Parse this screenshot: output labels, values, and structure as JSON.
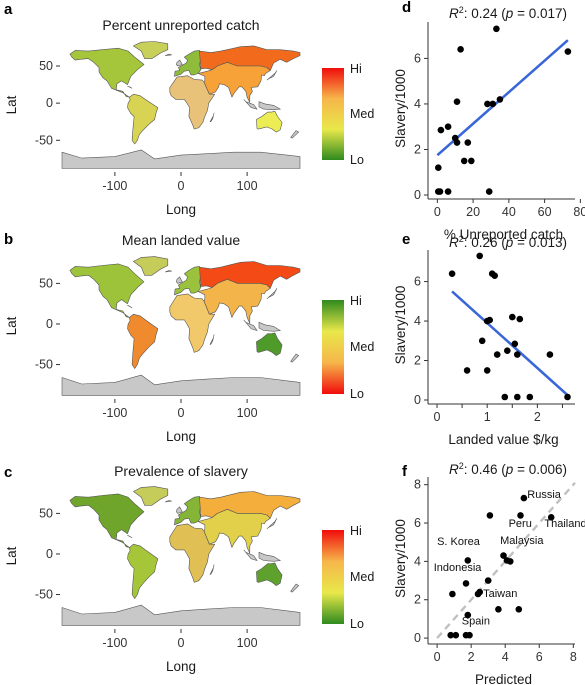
{
  "chart_data": [
    {
      "type": "map",
      "panel": "a",
      "title": "Percent unreported catch",
      "xlabel": "Long",
      "ylabel": "Lat",
      "xticks": [
        "-100",
        "0",
        "100"
      ],
      "yticks": [
        "50",
        "0",
        "-50"
      ],
      "xlim": [
        -180,
        180
      ],
      "ylim": [
        -90,
        85
      ],
      "legend_labels": [
        "Hi",
        "Med",
        "Lo"
      ],
      "legend_colors": [
        "#f00c0c",
        "#f6b64a",
        "#e8e84a",
        "#2f8a1e"
      ],
      "regions": [
        {
          "name": "North America",
          "color": "#a5c53a"
        },
        {
          "name": "Greenland",
          "color": "#c8d05a"
        },
        {
          "name": "South America",
          "color": "#d8d352"
        },
        {
          "name": "Africa",
          "color": "#e9c27a"
        },
        {
          "name": "Europe",
          "color": "#8fbc3b"
        },
        {
          "name": "Russia",
          "color": "#f26b1d"
        },
        {
          "name": "Asia",
          "color": "#f6a238"
        },
        {
          "name": "Australia",
          "color": "#ecec54"
        },
        {
          "name": "Antarctica",
          "color": "#c8c8c8"
        }
      ]
    },
    {
      "type": "map",
      "panel": "b",
      "title": "Mean landed value",
      "xlabel": "Long",
      "ylabel": "Lat",
      "xticks": [
        "-100",
        "0",
        "100"
      ],
      "yticks": [
        "50",
        "0",
        "-50"
      ],
      "xlim": [
        -180,
        180
      ],
      "ylim": [
        -90,
        85
      ],
      "legend_labels": [
        "Hi",
        "Med",
        "Lo"
      ],
      "legend_colors": [
        "#2f8a1e",
        "#e8e84a",
        "#f6b64a",
        "#f00c0c"
      ],
      "regions": [
        {
          "name": "North America",
          "color": "#9cc33a"
        },
        {
          "name": "Greenland",
          "color": "#c6cc5a"
        },
        {
          "name": "South America",
          "color": "#f08a2e"
        },
        {
          "name": "Africa",
          "color": "#f1c86a"
        },
        {
          "name": "Europe",
          "color": "#9ac23c"
        },
        {
          "name": "Russia",
          "color": "#f44a15"
        },
        {
          "name": "Asia",
          "color": "#f3b44a"
        },
        {
          "name": "Australia",
          "color": "#4f9b2a"
        },
        {
          "name": "Antarctica",
          "color": "#c8c8c8"
        }
      ]
    },
    {
      "type": "map",
      "panel": "c",
      "title": "Prevalence of slavery",
      "xlabel": "Long",
      "ylabel": "Lat",
      "xticks": [
        "-100",
        "0",
        "100"
      ],
      "yticks": [
        "50",
        "0",
        "-50"
      ],
      "xlim": [
        -180,
        180
      ],
      "ylim": [
        -90,
        85
      ],
      "legend_labels": [
        "Hi",
        "Med",
        "Lo"
      ],
      "legend_colors": [
        "#f00c0c",
        "#f6b64a",
        "#e8e84a",
        "#2f8a1e"
      ],
      "regions": [
        {
          "name": "North America",
          "color": "#6fa52a"
        },
        {
          "name": "Greenland",
          "color": "#c6cc5a"
        },
        {
          "name": "South America",
          "color": "#a6c63a"
        },
        {
          "name": "Africa",
          "color": "#e0c055"
        },
        {
          "name": "Europe",
          "color": "#84b536"
        },
        {
          "name": "Russia",
          "color": "#f3ae3c"
        },
        {
          "name": "Asia",
          "color": "#e2d04a"
        },
        {
          "name": "Australia",
          "color": "#5ea22d"
        },
        {
          "name": "Antarctica",
          "color": "#c8c8c8"
        }
      ]
    },
    {
      "type": "scatter",
      "panel": "d",
      "stat_text": "R²: 0.24 (p = 0.017)",
      "xlabel": "% Unreported catch",
      "ylabel": "Slavery/1000",
      "xlim": [
        -3,
        77
      ],
      "ylim": [
        0,
        7.6
      ],
      "xticks": [
        0,
        20,
        40,
        60,
        80
      ],
      "yticks": [
        0,
        2,
        4,
        6
      ],
      "line_color": "#3a67d8",
      "fit_line": {
        "x": [
          0,
          73
        ],
        "y": [
          1.75,
          6.8
        ]
      },
      "points": [
        {
          "x": 0.5,
          "y": 0.15
        },
        {
          "x": 1.5,
          "y": 0.15
        },
        {
          "x": 0.5,
          "y": 1.2
        },
        {
          "x": 2,
          "y": 2.85
        },
        {
          "x": 6,
          "y": 3.0
        },
        {
          "x": 6,
          "y": 0.15
        },
        {
          "x": 10,
          "y": 2.5
        },
        {
          "x": 11,
          "y": 2.3
        },
        {
          "x": 11,
          "y": 4.1
        },
        {
          "x": 13,
          "y": 6.4
        },
        {
          "x": 15,
          "y": 1.5
        },
        {
          "x": 17,
          "y": 2.3
        },
        {
          "x": 19,
          "y": 1.5
        },
        {
          "x": 28,
          "y": 4.0
        },
        {
          "x": 29,
          "y": 0.15
        },
        {
          "x": 31,
          "y": 4.0
        },
        {
          "x": 33,
          "y": 7.3
        },
        {
          "x": 35,
          "y": 4.2
        },
        {
          "x": 73,
          "y": 6.3
        }
      ]
    },
    {
      "type": "scatter",
      "panel": "e",
      "stat_text": "R²: 0.26 (p = 0.013)",
      "xlabel": "Landed value $/kg",
      "ylabel": "Slavery/1000",
      "xlim": [
        -0.1,
        2.75
      ],
      "ylim": [
        0,
        7.6
      ],
      "xticks": [
        0,
        0.5,
        1,
        1.5,
        2,
        2.5
      ],
      "xtick_labels": [
        "0",
        "",
        "1",
        "",
        "2",
        ""
      ],
      "yticks": [
        0,
        2,
        4,
        6
      ],
      "line_color": "#3a67d8",
      "fit_line": {
        "x": [
          0.3,
          2.6
        ],
        "y": [
          5.5,
          0.25
        ]
      },
      "points": [
        {
          "x": 0.3,
          "y": 6.4
        },
        {
          "x": 0.6,
          "y": 1.5
        },
        {
          "x": 0.85,
          "y": 7.3
        },
        {
          "x": 0.9,
          "y": 3.0
        },
        {
          "x": 1.0,
          "y": 4.0
        },
        {
          "x": 1.05,
          "y": 4.05
        },
        {
          "x": 1.0,
          "y": 1.5
        },
        {
          "x": 1.1,
          "y": 6.4
        },
        {
          "x": 1.15,
          "y": 6.3
        },
        {
          "x": 1.2,
          "y": 2.3
        },
        {
          "x": 1.35,
          "y": 0.15
        },
        {
          "x": 1.4,
          "y": 2.5
        },
        {
          "x": 1.5,
          "y": 4.2
        },
        {
          "x": 1.55,
          "y": 2.85
        },
        {
          "x": 1.6,
          "y": 2.3
        },
        {
          "x": 1.6,
          "y": 0.15
        },
        {
          "x": 1.65,
          "y": 4.1
        },
        {
          "x": 1.85,
          "y": 0.15
        },
        {
          "x": 2.25,
          "y": 2.3
        },
        {
          "x": 2.6,
          "y": 0.15
        }
      ]
    },
    {
      "type": "scatter",
      "panel": "f",
      "stat_text": "R²: 0.46 (p = 0.006)",
      "xlabel": "Predicted",
      "ylabel": "Slavery/1000",
      "xlim": [
        -0.3,
        8.1
      ],
      "ylim": [
        -0.1,
        8.4
      ],
      "xticks": [
        0,
        2,
        4,
        6,
        8
      ],
      "yticks": [
        0,
        2,
        4,
        6,
        8
      ],
      "line_color": "#c0c0c0",
      "fit_line": {
        "x": [
          0,
          8.1
        ],
        "y": [
          0,
          8.1
        ]
      },
      "points": [
        {
          "x": 0.8,
          "y": 0.15
        },
        {
          "x": 1.1,
          "y": 0.15
        },
        {
          "x": 1.7,
          "y": 0.15
        },
        {
          "x": 1.9,
          "y": 0.15
        },
        {
          "x": 1.8,
          "y": 1.2
        },
        {
          "x": 0.9,
          "y": 2.3
        },
        {
          "x": 1.7,
          "y": 2.85
        },
        {
          "x": 1.8,
          "y": 4.05
        },
        {
          "x": 2.4,
          "y": 2.3
        },
        {
          "x": 2.5,
          "y": 2.4
        },
        {
          "x": 3.0,
          "y": 3.0
        },
        {
          "x": 3.6,
          "y": 1.5
        },
        {
          "x": 4.1,
          "y": 4.05
        },
        {
          "x": 4.3,
          "y": 4.0
        },
        {
          "x": 4.8,
          "y": 1.5
        },
        {
          "x": 3.1,
          "y": 6.4
        },
        {
          "x": 4.9,
          "y": 6.4
        },
        {
          "x": 5.1,
          "y": 7.3
        },
        {
          "x": 6.7,
          "y": 6.3
        },
        {
          "x": 3.9,
          "y": 4.3
        }
      ],
      "labels": [
        {
          "text": "Russia",
          "x": 5.3,
          "y": 7.3
        },
        {
          "text": "Thailand",
          "x": 6.3,
          "y": 5.8
        },
        {
          "text": "Peru",
          "x": 4.2,
          "y": 5.8
        },
        {
          "text": "S. Korea",
          "x": 0.0,
          "y": 4.85
        },
        {
          "text": "Malaysia",
          "x": 3.7,
          "y": 4.9
        },
        {
          "text": "Indonesia",
          "x": -0.2,
          "y": 3.5
        },
        {
          "text": "Taiwan",
          "x": 2.7,
          "y": 2.15
        },
        {
          "text": "Spain",
          "x": 1.45,
          "y": 0.7
        }
      ]
    }
  ]
}
